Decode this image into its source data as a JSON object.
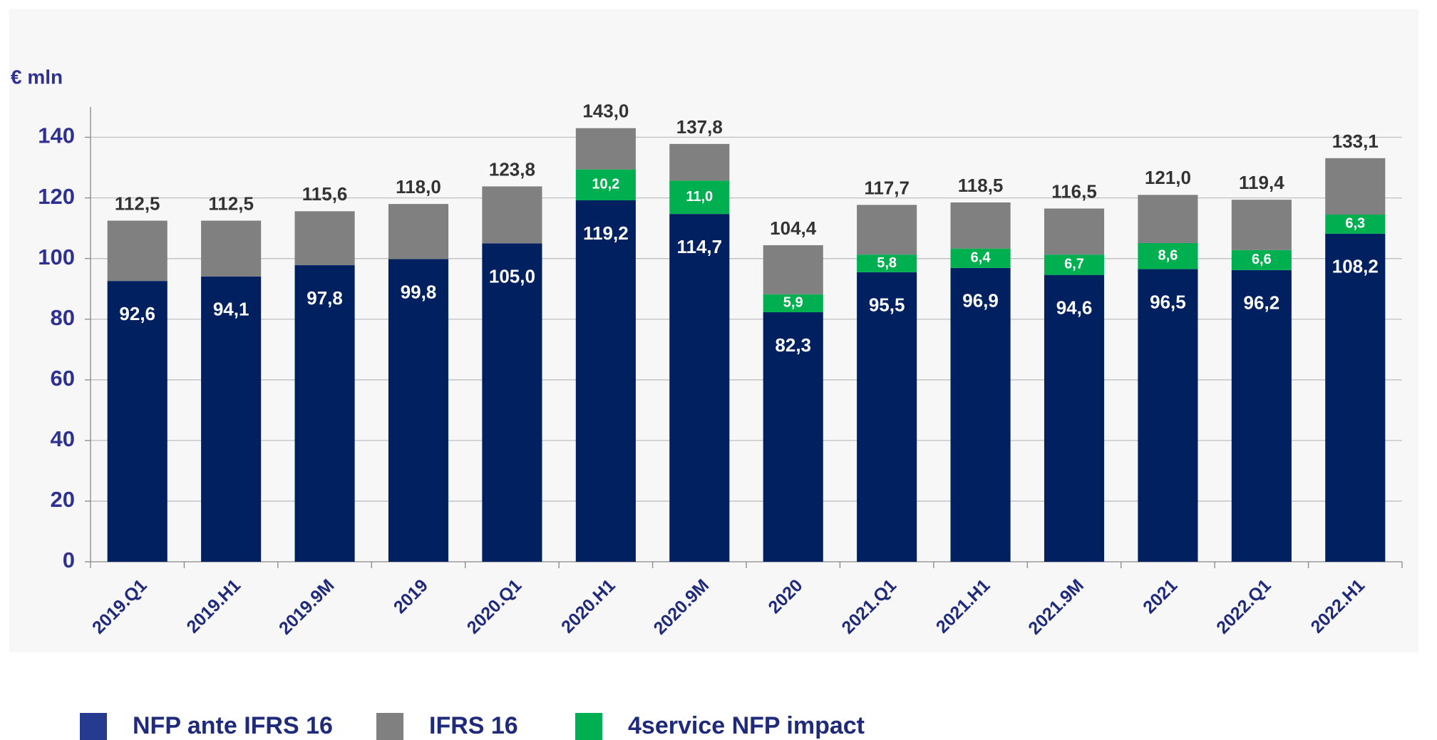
{
  "chart_data": {
    "type": "stacked_bar",
    "y_label": "€ mln",
    "categories": [
      "2019.Q1",
      "2019.H1",
      "2019.9M",
      "2019",
      "2020.Q1",
      "2020.H1",
      "2020.9M",
      "2020",
      "2021.Q1",
      "2021.H1",
      "2021.9M",
      "2021",
      "2022.Q1",
      "2022.H1"
    ],
    "series": [
      {
        "name": "NFP ante IFRS 16",
        "color": "#002060",
        "values": [
          92.6,
          94.1,
          97.8,
          99.8,
          105.0,
          119.2,
          114.7,
          82.3,
          95.5,
          96.9,
          94.6,
          96.5,
          96.2,
          108.2
        ],
        "value_labels": [
          "92,6",
          "94,1",
          "97,8",
          "99,8",
          "105,0",
          "119,2",
          "114,7",
          "82,3",
          "95,5",
          "96,9",
          "94,6",
          "96,5",
          "96,2",
          "108,2"
        ]
      },
      {
        "name": "4service NFP impact",
        "color": "#00b050",
        "values": [
          null,
          null,
          null,
          null,
          null,
          10.2,
          11.0,
          5.9,
          5.8,
          6.4,
          6.7,
          8.6,
          6.6,
          6.3
        ],
        "value_labels": [
          null,
          null,
          null,
          null,
          null,
          "10,2",
          "11,0",
          "5,9",
          "5,8",
          "6,4",
          "6,7",
          "8,6",
          "6,6",
          "6,3"
        ]
      },
      {
        "name": "IFRS 16",
        "color": "#808080",
        "values": [
          19.9,
          18.4,
          17.8,
          18.2,
          18.8,
          13.6,
          12.1,
          16.2,
          16.4,
          15.2,
          15.2,
          15.9,
          16.6,
          18.6
        ]
      }
    ],
    "totals": {
      "values": [
        112.5,
        112.5,
        115.6,
        118.0,
        123.8,
        143.0,
        137.8,
        104.4,
        117.7,
        118.5,
        116.5,
        121.0,
        119.4,
        133.1
      ],
      "value_labels": [
        "112,5",
        "112,5",
        "115,6",
        "118,0",
        "123,8",
        "143,0",
        "137,8",
        "104,4",
        "117,7",
        "118,5",
        "116,5",
        "121,0",
        "119,4",
        "133,1"
      ]
    },
    "legend_order": [
      0,
      2,
      1
    ],
    "ylim": [
      0,
      150
    ],
    "yticks": [
      0,
      20,
      40,
      60,
      80,
      100,
      120,
      140
    ],
    "grid": true
  }
}
